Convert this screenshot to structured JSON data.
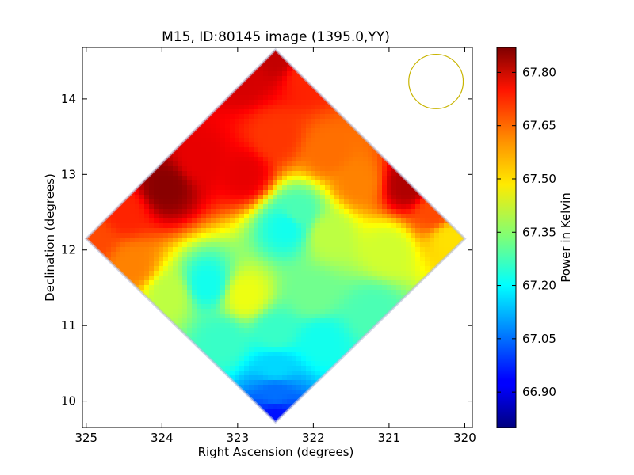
{
  "chart_data": {
    "type": "heatmap",
    "title": "M15, ID:80145 image (1395.0,YY)",
    "xlabel": "Right Ascension (degrees)",
    "ylabel": "Declination (degrees)",
    "xlim": [
      325.05,
      319.9
    ],
    "ylim": [
      9.65,
      14.68
    ],
    "x_ticks": [
      "325",
      "324",
      "323",
      "322",
      "321",
      "320"
    ],
    "x_tick_values": [
      325,
      324,
      323,
      322,
      321,
      320
    ],
    "y_ticks": [
      "10",
      "11",
      "12",
      "13",
      "14"
    ],
    "y_tick_values": [
      10,
      11,
      12,
      13,
      14
    ],
    "colorbar": {
      "label": "Power in Kelvin",
      "range": [
        66.8,
        67.87
      ],
      "ticks": [
        "66.90",
        "67.05",
        "67.20",
        "67.35",
        "67.50",
        "67.65",
        "67.80"
      ],
      "tick_values": [
        66.9,
        67.05,
        67.2,
        67.35,
        67.5,
        67.65,
        67.8
      ],
      "colormap": "jet"
    },
    "field": {
      "shape": "diamond",
      "center": [
        322.5,
        12.15
      ],
      "corners": {
        "top": [
          322.5,
          14.65
        ],
        "left": [
          325.0,
          12.15
        ],
        "right": [
          320.0,
          12.15
        ],
        "bottom": [
          322.5,
          9.72
        ]
      },
      "samples": [
        {
          "ra": 322.5,
          "dec": 14.55,
          "value": 67.8
        },
        {
          "ra": 322.9,
          "dec": 14.3,
          "value": 67.78
        },
        {
          "ra": 322.1,
          "dec": 14.3,
          "value": 67.7
        },
        {
          "ra": 323.95,
          "dec": 12.82,
          "value": 67.86
        },
        {
          "ra": 323.5,
          "dec": 13.2,
          "value": 67.76
        },
        {
          "ra": 324.5,
          "dec": 12.5,
          "value": 67.7
        },
        {
          "ra": 324.9,
          "dec": 12.15,
          "value": 67.66
        },
        {
          "ra": 324.4,
          "dec": 11.8,
          "value": 67.6
        },
        {
          "ra": 322.9,
          "dec": 13.0,
          "value": 67.76
        },
        {
          "ra": 322.5,
          "dec": 13.5,
          "value": 67.68
        },
        {
          "ra": 321.8,
          "dec": 13.3,
          "value": 67.62
        },
        {
          "ra": 320.75,
          "dec": 12.85,
          "value": 67.82
        },
        {
          "ra": 320.4,
          "dec": 12.5,
          "value": 67.66
        },
        {
          "ra": 320.2,
          "dec": 12.15,
          "value": 67.5
        },
        {
          "ra": 321.4,
          "dec": 12.9,
          "value": 67.6
        },
        {
          "ra": 322.35,
          "dec": 12.3,
          "value": 67.22
        },
        {
          "ra": 322.2,
          "dec": 12.5,
          "value": 67.28
        },
        {
          "ra": 321.8,
          "dec": 12.2,
          "value": 67.4
        },
        {
          "ra": 321.0,
          "dec": 12.0,
          "value": 67.42
        },
        {
          "ra": 323.4,
          "dec": 11.55,
          "value": 67.22
        },
        {
          "ra": 322.9,
          "dec": 11.4,
          "value": 67.45
        },
        {
          "ra": 323.9,
          "dec": 11.4,
          "value": 67.4
        },
        {
          "ra": 322.0,
          "dec": 11.4,
          "value": 67.32
        },
        {
          "ra": 321.2,
          "dec": 11.2,
          "value": 67.28
        },
        {
          "ra": 323.2,
          "dec": 10.8,
          "value": 67.26
        },
        {
          "ra": 322.5,
          "dec": 10.9,
          "value": 67.26
        },
        {
          "ra": 321.9,
          "dec": 10.8,
          "value": 67.22
        },
        {
          "ra": 322.5,
          "dec": 10.45,
          "value": 67.16
        },
        {
          "ra": 322.5,
          "dec": 10.1,
          "value": 67.05
        },
        {
          "ra": 322.5,
          "dec": 9.8,
          "value": 66.95
        }
      ]
    },
    "beam_circle": {
      "ra": 320.38,
      "dec": 14.23,
      "radius_deg": 0.36,
      "color": "#c8b400"
    },
    "grid": false
  }
}
